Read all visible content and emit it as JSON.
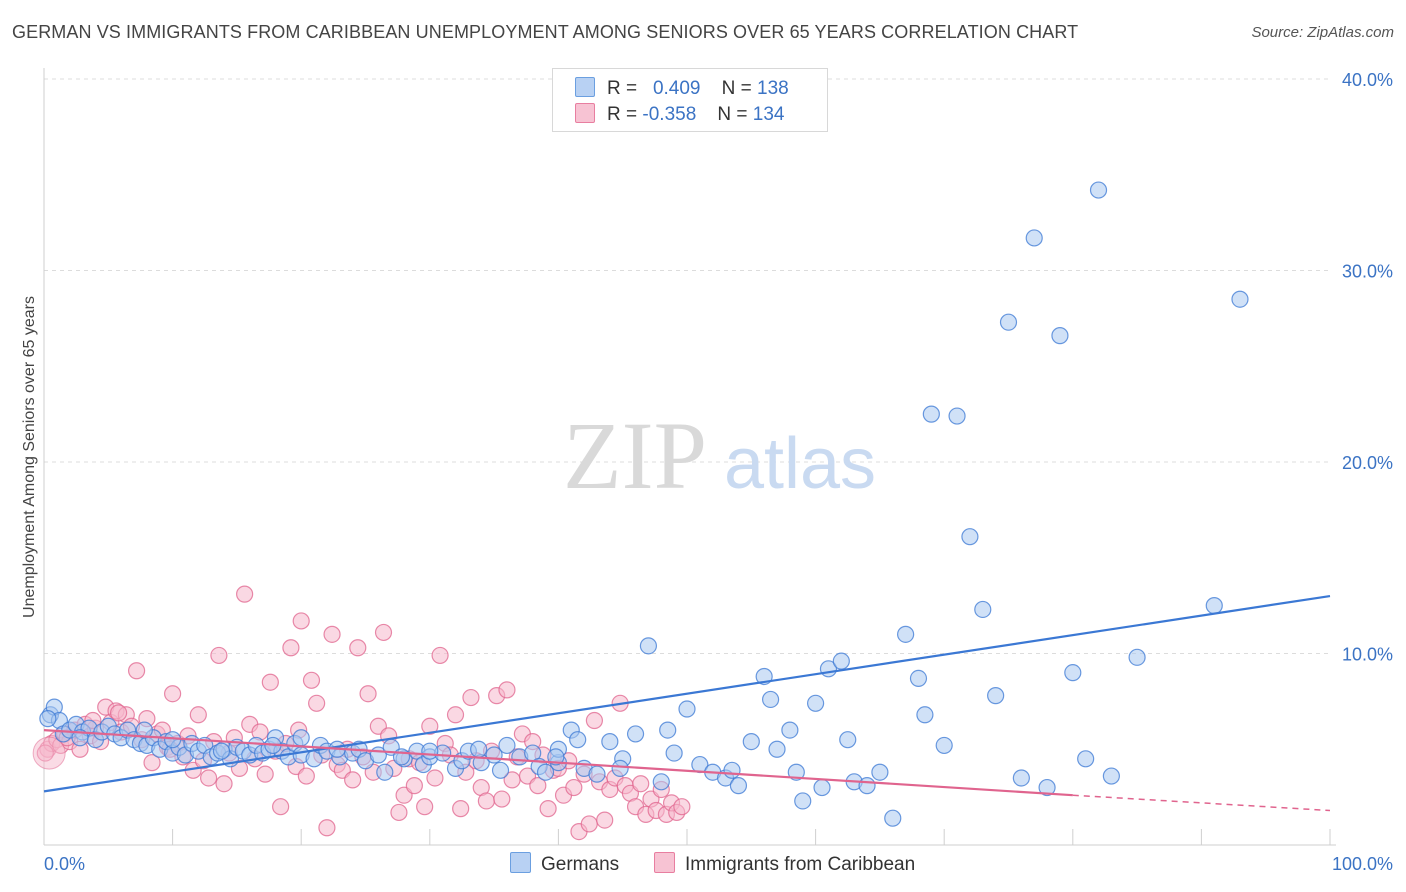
{
  "title": "GERMAN VS IMMIGRANTS FROM CARIBBEAN UNEMPLOYMENT AMONG SENIORS OVER 65 YEARS CORRELATION CHART",
  "source": "Source: ZipAtlas.com",
  "watermark": {
    "zip": "ZIP",
    "atlas": "atlas"
  },
  "legend_stats": [
    {
      "r_label": "R =",
      "r_value": "0.409",
      "n_label": "N =",
      "n_value": "138",
      "color": "#6b9fe0",
      "fill": "#b8d1f3"
    },
    {
      "r_label": "R =",
      "r_value": "-0.358",
      "n_label": "N =",
      "n_value": "134",
      "color": "#e87ea0",
      "fill": "#f7c3d3"
    }
  ],
  "chart_data": {
    "type": "scatter",
    "xlabel": "",
    "ylabel": "Unemployment Among Seniors over 65 years",
    "xlim": [
      0,
      100
    ],
    "ylim": [
      0,
      40
    ],
    "x_tick_labels": [
      "0.0%",
      "100.0%"
    ],
    "y_ticks": [
      10,
      20,
      30,
      40
    ],
    "y_tick_labels": [
      "10.0%",
      "20.0%",
      "30.0%",
      "40.0%"
    ],
    "grid": true,
    "legend_position": "bottom",
    "series": [
      {
        "name": "Germans",
        "color": "#3b78d4",
        "fill": "#a9c8f0",
        "trend": {
          "x": [
            0,
            100
          ],
          "y": [
            2.8,
            13.0
          ],
          "dash_from": null
        },
        "points": [
          [
            0.5,
            6.8
          ],
          [
            0.8,
            7.2
          ],
          [
            1.2,
            6.5
          ],
          [
            1.5,
            5.8
          ],
          [
            2,
            6.0
          ],
          [
            2.5,
            6.3
          ],
          [
            3,
            5.9
          ],
          [
            3.5,
            6.1
          ],
          [
            4,
            5.5
          ],
          [
            4.5,
            5.9
          ],
          [
            5,
            6.2
          ],
          [
            5.5,
            5.8
          ],
          [
            6,
            5.6
          ],
          [
            6.5,
            6.0
          ],
          [
            7,
            5.5
          ],
          [
            7.5,
            5.3
          ],
          [
            8,
            5.2
          ],
          [
            8.5,
            5.6
          ],
          [
            9,
            5.0
          ],
          [
            9.5,
            5.4
          ],
          [
            10,
            4.8
          ],
          [
            10.5,
            5.1
          ],
          [
            11,
            4.7
          ],
          [
            11.5,
            5.3
          ],
          [
            12,
            4.9
          ],
          [
            12.5,
            5.2
          ],
          [
            13,
            4.6
          ],
          [
            13.5,
            4.8
          ],
          [
            14,
            5.0
          ],
          [
            14.5,
            4.5
          ],
          [
            15,
            5.1
          ],
          [
            15.5,
            4.9
          ],
          [
            16,
            4.7
          ],
          [
            16.5,
            5.2
          ],
          [
            17,
            4.8
          ],
          [
            17.5,
            5.0
          ],
          [
            18,
            5.6
          ],
          [
            18.5,
            4.9
          ],
          [
            19,
            4.6
          ],
          [
            19.5,
            5.3
          ],
          [
            20,
            4.7
          ],
          [
            21,
            4.5
          ],
          [
            21.5,
            5.2
          ],
          [
            22,
            4.9
          ],
          [
            23,
            4.6
          ],
          [
            24,
            4.8
          ],
          [
            24.5,
            5.0
          ],
          [
            25,
            4.4
          ],
          [
            26,
            4.7
          ],
          [
            26.5,
            3.8
          ],
          [
            27,
            5.1
          ],
          [
            28,
            4.5
          ],
          [
            29,
            4.9
          ],
          [
            29.5,
            4.2
          ],
          [
            30,
            4.6
          ],
          [
            31,
            4.8
          ],
          [
            32,
            4.0
          ],
          [
            32.5,
            4.4
          ],
          [
            33,
            4.9
          ],
          [
            34,
            4.3
          ],
          [
            35,
            4.7
          ],
          [
            35.5,
            3.9
          ],
          [
            36,
            5.2
          ],
          [
            37,
            4.6
          ],
          [
            38,
            4.8
          ],
          [
            38.5,
            4.1
          ],
          [
            39,
            3.8
          ],
          [
            40,
            4.3
          ],
          [
            41,
            6.0
          ],
          [
            41.5,
            5.5
          ],
          [
            42,
            4.0
          ],
          [
            43,
            3.7
          ],
          [
            44,
            5.4
          ],
          [
            45,
            4.5
          ],
          [
            46,
            5.8
          ],
          [
            47,
            10.4
          ],
          [
            48,
            3.3
          ],
          [
            48.5,
            6.0
          ],
          [
            49,
            4.8
          ],
          [
            50,
            7.1
          ],
          [
            51,
            4.2
          ],
          [
            52,
            3.8
          ],
          [
            53,
            3.5
          ],
          [
            53.5,
            3.9
          ],
          [
            54,
            3.1
          ],
          [
            55,
            5.4
          ],
          [
            56,
            8.8
          ],
          [
            56.5,
            7.6
          ],
          [
            57,
            5.0
          ],
          [
            58,
            6.0
          ],
          [
            58.5,
            3.8
          ],
          [
            59,
            2.3
          ],
          [
            60,
            7.4
          ],
          [
            60.5,
            3.0
          ],
          [
            61,
            9.2
          ],
          [
            62,
            9.6
          ],
          [
            62.5,
            5.5
          ],
          [
            63,
            3.3
          ],
          [
            64,
            3.1
          ],
          [
            65,
            3.8
          ],
          [
            66,
            1.4
          ],
          [
            67,
            11.0
          ],
          [
            68,
            8.7
          ],
          [
            68.5,
            6.8
          ],
          [
            69,
            22.5
          ],
          [
            70,
            5.2
          ],
          [
            71,
            22.4
          ],
          [
            72,
            16.1
          ],
          [
            73,
            12.3
          ],
          [
            74,
            7.8
          ],
          [
            75,
            27.3
          ],
          [
            76,
            3.5
          ],
          [
            77,
            31.7
          ],
          [
            78,
            3.0
          ],
          [
            79,
            26.6
          ],
          [
            80,
            9.0
          ],
          [
            81,
            4.5
          ],
          [
            82,
            34.2
          ],
          [
            83,
            3.6
          ],
          [
            85,
            9.8
          ],
          [
            91,
            12.5
          ],
          [
            93,
            28.5
          ],
          [
            0.3,
            6.6
          ],
          [
            10,
            5.5
          ],
          [
            20,
            5.6
          ],
          [
            30,
            4.9
          ],
          [
            40,
            5.0
          ],
          [
            2.8,
            5.6
          ],
          [
            7.8,
            6.0
          ],
          [
            13.8,
            4.9
          ],
          [
            17.8,
            5.2
          ],
          [
            22.8,
            5.0
          ],
          [
            27.8,
            4.6
          ],
          [
            33.8,
            5.0
          ],
          [
            39.8,
            4.6
          ],
          [
            44.8,
            4.0
          ]
        ]
      },
      {
        "name": "Immigrants from Caribbean",
        "color": "#e0648e",
        "fill": "#f5b8cc",
        "trend": {
          "x": [
            0,
            80
          ],
          "y": [
            6.0,
            2.6
          ],
          "dash_to": [
            100,
            1.8
          ]
        },
        "points": [
          [
            0.3,
            5.0
          ],
          [
            0.6,
            5.3
          ],
          [
            1,
            5.5
          ],
          [
            1.3,
            5.2
          ],
          [
            1.6,
            5.8
          ],
          [
            2,
            5.4
          ],
          [
            2.4,
            6.0
          ],
          [
            2.8,
            5.0
          ],
          [
            3.2,
            6.3
          ],
          [
            3.6,
            5.7
          ],
          [
            4,
            6.1
          ],
          [
            4.4,
            5.4
          ],
          [
            4.8,
            7.2
          ],
          [
            5.2,
            6.4
          ],
          [
            5.6,
            7.0
          ],
          [
            6,
            5.9
          ],
          [
            6.4,
            6.8
          ],
          [
            6.8,
            6.2
          ],
          [
            7.2,
            9.1
          ],
          [
            7.6,
            5.5
          ],
          [
            8,
            6.6
          ],
          [
            8.4,
            4.3
          ],
          [
            8.8,
            5.8
          ],
          [
            9.2,
            6.0
          ],
          [
            9.6,
            5.1
          ],
          [
            10,
            7.9
          ],
          [
            10.4,
            5.3
          ],
          [
            10.8,
            4.6
          ],
          [
            11.2,
            5.7
          ],
          [
            11.6,
            3.9
          ],
          [
            12,
            6.8
          ],
          [
            12.4,
            4.4
          ],
          [
            12.8,
            3.5
          ],
          [
            13.2,
            5.4
          ],
          [
            13.6,
            9.9
          ],
          [
            14,
            3.2
          ],
          [
            14.4,
            4.8
          ],
          [
            14.8,
            5.6
          ],
          [
            15.2,
            4.0
          ],
          [
            15.6,
            13.1
          ],
          [
            16,
            6.3
          ],
          [
            16.4,
            4.5
          ],
          [
            16.8,
            5.9
          ],
          [
            17.2,
            3.7
          ],
          [
            17.6,
            8.5
          ],
          [
            18,
            4.9
          ],
          [
            18.4,
            2.0
          ],
          [
            18.8,
            5.3
          ],
          [
            19.2,
            10.3
          ],
          [
            19.6,
            4.1
          ],
          [
            20,
            11.7
          ],
          [
            20.4,
            3.6
          ],
          [
            20.8,
            8.6
          ],
          [
            21.2,
            7.4
          ],
          [
            21.6,
            4.7
          ],
          [
            22,
            0.9
          ],
          [
            22.4,
            11.0
          ],
          [
            22.8,
            4.2
          ],
          [
            23.2,
            3.9
          ],
          [
            23.6,
            5.0
          ],
          [
            24,
            3.4
          ],
          [
            24.4,
            10.3
          ],
          [
            24.8,
            4.6
          ],
          [
            25.2,
            7.9
          ],
          [
            25.6,
            3.8
          ],
          [
            26,
            6.2
          ],
          [
            26.4,
            11.1
          ],
          [
            26.8,
            5.7
          ],
          [
            27.2,
            4.0
          ],
          [
            27.6,
            1.7
          ],
          [
            28,
            2.6
          ],
          [
            28.4,
            4.5
          ],
          [
            28.8,
            3.1
          ],
          [
            29.2,
            4.3
          ],
          [
            29.6,
            2.0
          ],
          [
            30,
            6.2
          ],
          [
            30.4,
            3.5
          ],
          [
            30.8,
            9.9
          ],
          [
            31.2,
            5.3
          ],
          [
            31.6,
            4.7
          ],
          [
            32,
            6.8
          ],
          [
            32.4,
            1.9
          ],
          [
            32.8,
            3.8
          ],
          [
            33.2,
            7.7
          ],
          [
            33.6,
            4.4
          ],
          [
            34,
            3.0
          ],
          [
            34.4,
            2.3
          ],
          [
            34.8,
            4.9
          ],
          [
            35.2,
            7.8
          ],
          [
            35.6,
            2.4
          ],
          [
            36,
            8.1
          ],
          [
            36.4,
            3.4
          ],
          [
            36.8,
            4.6
          ],
          [
            37.2,
            5.8
          ],
          [
            37.6,
            3.6
          ],
          [
            38,
            5.4
          ],
          [
            38.4,
            3.1
          ],
          [
            38.8,
            4.7
          ],
          [
            39.2,
            1.9
          ],
          [
            39.6,
            3.9
          ],
          [
            40,
            4.0
          ],
          [
            40.4,
            2.6
          ],
          [
            40.8,
            4.4
          ],
          [
            41.2,
            3.0
          ],
          [
            41.6,
            0.7
          ],
          [
            42,
            3.7
          ],
          [
            42.4,
            1.1
          ],
          [
            42.8,
            6.5
          ],
          [
            43.2,
            3.3
          ],
          [
            43.6,
            1.3
          ],
          [
            44,
            2.9
          ],
          [
            44.4,
            3.5
          ],
          [
            44.8,
            7.4
          ],
          [
            45.2,
            3.1
          ],
          [
            45.6,
            2.7
          ],
          [
            46,
            2.0
          ],
          [
            46.4,
            3.2
          ],
          [
            46.8,
            1.6
          ],
          [
            47.2,
            2.4
          ],
          [
            47.6,
            1.8
          ],
          [
            48,
            2.9
          ],
          [
            48.4,
            1.6
          ],
          [
            48.8,
            2.2
          ],
          [
            49.2,
            1.7
          ],
          [
            49.6,
            2.0
          ],
          [
            0.1,
            4.8
          ],
          [
            1.8,
            5.6
          ],
          [
            3.8,
            6.5
          ],
          [
            5.8,
            6.9
          ],
          [
            9.8,
            5.0
          ],
          [
            19.8,
            6.0
          ]
        ]
      }
    ]
  },
  "bottom_legend": [
    {
      "label": "Germans",
      "color": "#6b9fe0",
      "fill": "#b8d1f3"
    },
    {
      "label": "Immigrants from Caribbean",
      "color": "#e87ea0",
      "fill": "#f7c3d3"
    }
  ]
}
